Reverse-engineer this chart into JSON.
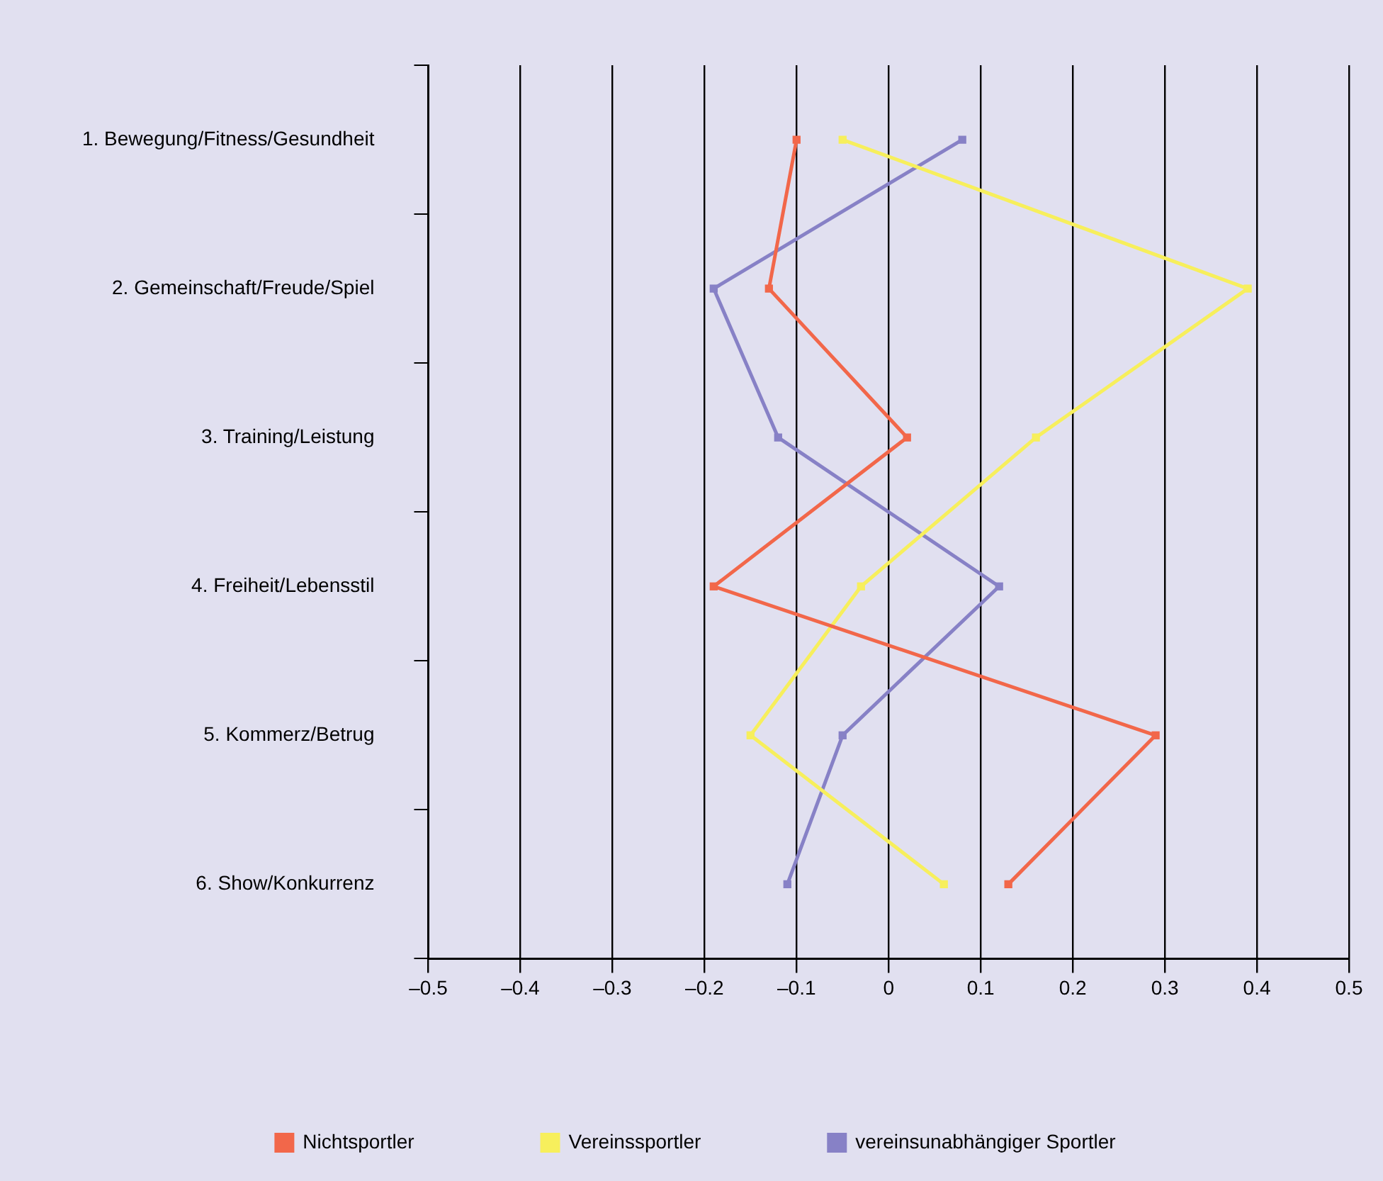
{
  "chart_data": {
    "type": "line",
    "orientation": "horizontal",
    "categories": [
      "1. Bewegung/Fitness/Gesundheit",
      "2. Gemeinschaft/Freude/Spiel",
      "3. Training/Leistung",
      "4. Freiheit/Lebensstil",
      "5. Kommerz/Betrug",
      "6. Show/Konkurrenz"
    ],
    "series": [
      {
        "name": "Nichtsportler",
        "color": "#f2674a",
        "values": [
          -0.1,
          -0.13,
          0.02,
          -0.19,
          0.29,
          0.13
        ]
      },
      {
        "name": "Vereinssportler",
        "color": "#f7ef5c",
        "values": [
          -0.05,
          0.39,
          0.16,
          -0.03,
          -0.15,
          0.06
        ]
      },
      {
        "name": "vereinsunabhängiger Sportler",
        "color": "#8781c6",
        "values": [
          0.08,
          -0.19,
          -0.12,
          0.12,
          -0.05,
          -0.11
        ]
      }
    ],
    "xlim": [
      -0.5,
      0.5
    ],
    "xticks": [
      {
        "value": -0.5,
        "label": "–0.5"
      },
      {
        "value": -0.4,
        "label": "–0.4"
      },
      {
        "value": -0.3,
        "label": "–0.3"
      },
      {
        "value": -0.2,
        "label": "–0.2"
      },
      {
        "value": -0.1,
        "label": "–0.1"
      },
      0,
      0.1,
      0.2,
      0.3,
      0.4,
      0.5
    ],
    "grid": "x",
    "legend": "bottom",
    "marker": "square",
    "line_style": "solid"
  }
}
